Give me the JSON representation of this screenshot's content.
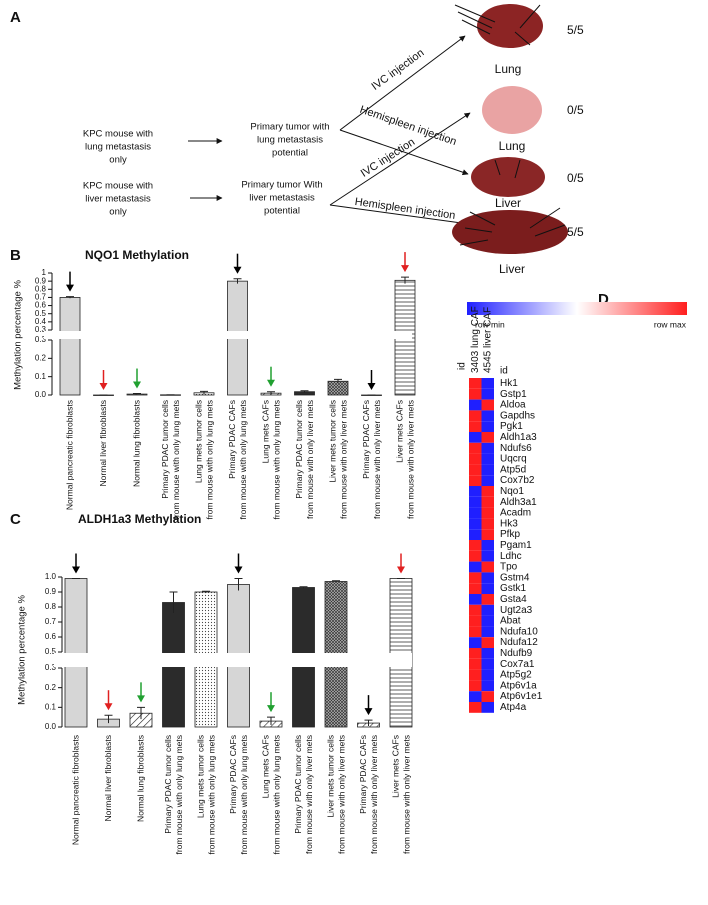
{
  "figure": {
    "panel_labels": [
      "A",
      "B",
      "C",
      "D"
    ]
  },
  "diagram": {
    "sources": [
      {
        "lines": [
          "KPC mouse with",
          "lung metastasis",
          "only"
        ]
      },
      {
        "lines": [
          "KPC mouse with",
          "liver metastasis",
          "only"
        ]
      }
    ],
    "tumors": [
      {
        "lines": [
          "Primary tumor with",
          "lung metastasis",
          "potential"
        ]
      },
      {
        "lines": [
          "Primary tumor With",
          "liver metastasis",
          "potential"
        ]
      }
    ],
    "routes": [
      "IVC injection",
      "Hemispleen injection",
      "IVC injection",
      "Hemispleen injection"
    ],
    "outcomes": [
      {
        "organ": "Lung",
        "ratio": "5/5"
      },
      {
        "organ": "Lung",
        "ratio": "0/5"
      },
      {
        "organ": "Liver",
        "ratio": "0/5"
      },
      {
        "organ": "Liver",
        "ratio": "5/5"
      }
    ]
  },
  "chart_data": [
    {
      "type": "bar",
      "title": "NQO1 Methylation",
      "y_label": "Methylation percentage %",
      "categories": [
        [
          "Normal pancreatic fibroblasts"
        ],
        [
          "Normal liver fibroblasts"
        ],
        [
          "Normal lung fibroblasts"
        ],
        [
          "Primary PDAC tumor cells",
          "from mouse with only lung mets"
        ],
        [
          "Lung mets tumor cells",
          "from mouse with only lung mets"
        ],
        [
          "Primary PDAC CAFs",
          "from mouse with only lung mets"
        ],
        [
          "Lung mets CAFs",
          "from mouse with only lung mets"
        ],
        [
          "Primary PDAC tumor cells",
          "from mouse with only liver mets"
        ],
        [
          "Liver mets tumor cells",
          "from mouse with only liver mets"
        ],
        [
          "Primary PDAC CAFs",
          "from mouse with only liver mets"
        ],
        [
          "Liver mets CAFs",
          "from mouse with only liver mets"
        ]
      ],
      "values": [
        0.7,
        0.0,
        0.005,
        0.001,
        0.012,
        0.9,
        0.01,
        0.018,
        0.075,
        0.0,
        0.91
      ],
      "errors": [
        0.01,
        0.0,
        0.003,
        0.0,
        0.008,
        0.03,
        0.008,
        0.005,
        0.01,
        0.0,
        0.04
      ],
      "patterns": [
        "light",
        "light",
        "diagonal",
        "dark",
        "dots",
        "light",
        "diagonal",
        "dark",
        "crosshatch",
        "diagonal",
        "horizontal"
      ],
      "arrow_colors": [
        "#000000",
        "#e02020",
        "#20a030",
        null,
        null,
        "#000000",
        "#20a030",
        null,
        null,
        "#000000",
        "#e02020"
      ],
      "segments": [
        {
          "ylim": [
            0,
            0.3
          ],
          "yticks": [
            {
              "value": 0,
              "label": "0.0"
            },
            0.1,
            0.2,
            0.3
          ]
        },
        {
          "ylim": [
            0.3,
            1
          ],
          "yticks": [
            0.3,
            0.4,
            0.5,
            0.6,
            0.7,
            0.8,
            0.9,
            1
          ]
        }
      ]
    },
    {
      "type": "bar",
      "title": "ALDH1a3 Methylation",
      "y_label": "Methylation percentage %",
      "categories": [
        [
          "Normal pancreatic fibroblasts"
        ],
        [
          "Normal liver fibroblasts"
        ],
        [
          "Normal lung fibroblasts"
        ],
        [
          "Primary PDAC tumor cells",
          "from mouse with only lung mets"
        ],
        [
          "Lung mets tumor cells",
          "from mouse with only lung mets"
        ],
        [
          "Primary PDAC CAFs",
          "from mouse with only lung mets"
        ],
        [
          "Lung mets CAFs",
          "from mouse with only lung mets"
        ],
        [
          "Primary PDAC tumor cells",
          "from mouse with only liver mets"
        ],
        [
          "Liver mets tumor cells",
          "from mouse with only liver mets"
        ],
        [
          "Primary PDAC CAFs",
          "from mouse with only liver mets"
        ],
        [
          "Liver mets CAFs",
          "from mouse with only liver mets"
        ]
      ],
      "values": [
        0.99,
        0.04,
        0.07,
        0.83,
        0.9,
        0.95,
        0.03,
        0.93,
        0.97,
        0.02,
        0.99
      ],
      "errors": [
        0.0,
        0.02,
        0.03,
        0.07,
        0.005,
        0.04,
        0.02,
        0.005,
        0.005,
        0.015,
        0.0
      ],
      "patterns": [
        "light",
        "light",
        "diagonal",
        "dark",
        "dots",
        "light",
        "diagonal",
        "dark",
        "crosshatch",
        "diagonal",
        "horizontal"
      ],
      "arrow_colors": [
        "#000000",
        "#e02020",
        "#20a030",
        null,
        null,
        "#000000",
        "#20a030",
        null,
        null,
        "#000000",
        "#e02020"
      ],
      "segments": [
        {
          "ylim": [
            0,
            0.3
          ],
          "yticks": [
            {
              "value": 0,
              "label": "0.0"
            },
            0.1,
            0.2,
            0.3
          ]
        },
        {
          "ylim": [
            0.5,
            1
          ],
          "yticks": [
            0.5,
            0.6,
            0.7,
            0.8,
            0.9,
            {
              "value": 1,
              "label": "1.0"
            }
          ]
        }
      ]
    },
    {
      "type": "heatmap",
      "columns": [
        "3403 lung CAF",
        "4545 liver CAF"
      ],
      "id_labels": [
        "id",
        "id"
      ],
      "rows": [
        "Hk1",
        "Gstp1",
        "Aldoa",
        "Gapdhs",
        "Pgk1",
        "Aldh1a3",
        "Ndufs6",
        "Uqcrq",
        "Atp5d",
        "Cox7b2",
        "Nqo1",
        "Aldh3a1",
        "Acadm",
        "Hk3",
        "Pfkp",
        "Pgam1",
        "Ldhc",
        "Tpo",
        "Gstm4",
        "Gstk1",
        "Gsta4",
        "Ugt2a3",
        "Abat",
        "Ndufa10",
        "Ndufa12",
        "Ndufb9",
        "Cox7a1",
        "Atp5g2",
        "Atp6v1a",
        "Atp6v1e1",
        "Atp4a"
      ],
      "values": [
        [
          1,
          0
        ],
        [
          1,
          0
        ],
        [
          0,
          1
        ],
        [
          1,
          0
        ],
        [
          1,
          0
        ],
        [
          0,
          1
        ],
        [
          1,
          0
        ],
        [
          1,
          0
        ],
        [
          1,
          0
        ],
        [
          1,
          0
        ],
        [
          0,
          1
        ],
        [
          0,
          1
        ],
        [
          0,
          1
        ],
        [
          0,
          1
        ],
        [
          0,
          1
        ],
        [
          1,
          0
        ],
        [
          1,
          0
        ],
        [
          0,
          1
        ],
        [
          1,
          0
        ],
        [
          1,
          0
        ],
        [
          0,
          1
        ],
        [
          1,
          0
        ],
        [
          1,
          0
        ],
        [
          1,
          0
        ],
        [
          0,
          1
        ],
        [
          1,
          0
        ],
        [
          1,
          0
        ],
        [
          1,
          0
        ],
        [
          1,
          0
        ],
        [
          0,
          1
        ],
        [
          1,
          0
        ]
      ],
      "clim": [
        0,
        1
      ],
      "colors": [
        "#1f1fff",
        "#ffffff",
        "#ff1f1f"
      ],
      "legend": {
        "min_label": "row min",
        "max_label": "row max"
      }
    }
  ]
}
